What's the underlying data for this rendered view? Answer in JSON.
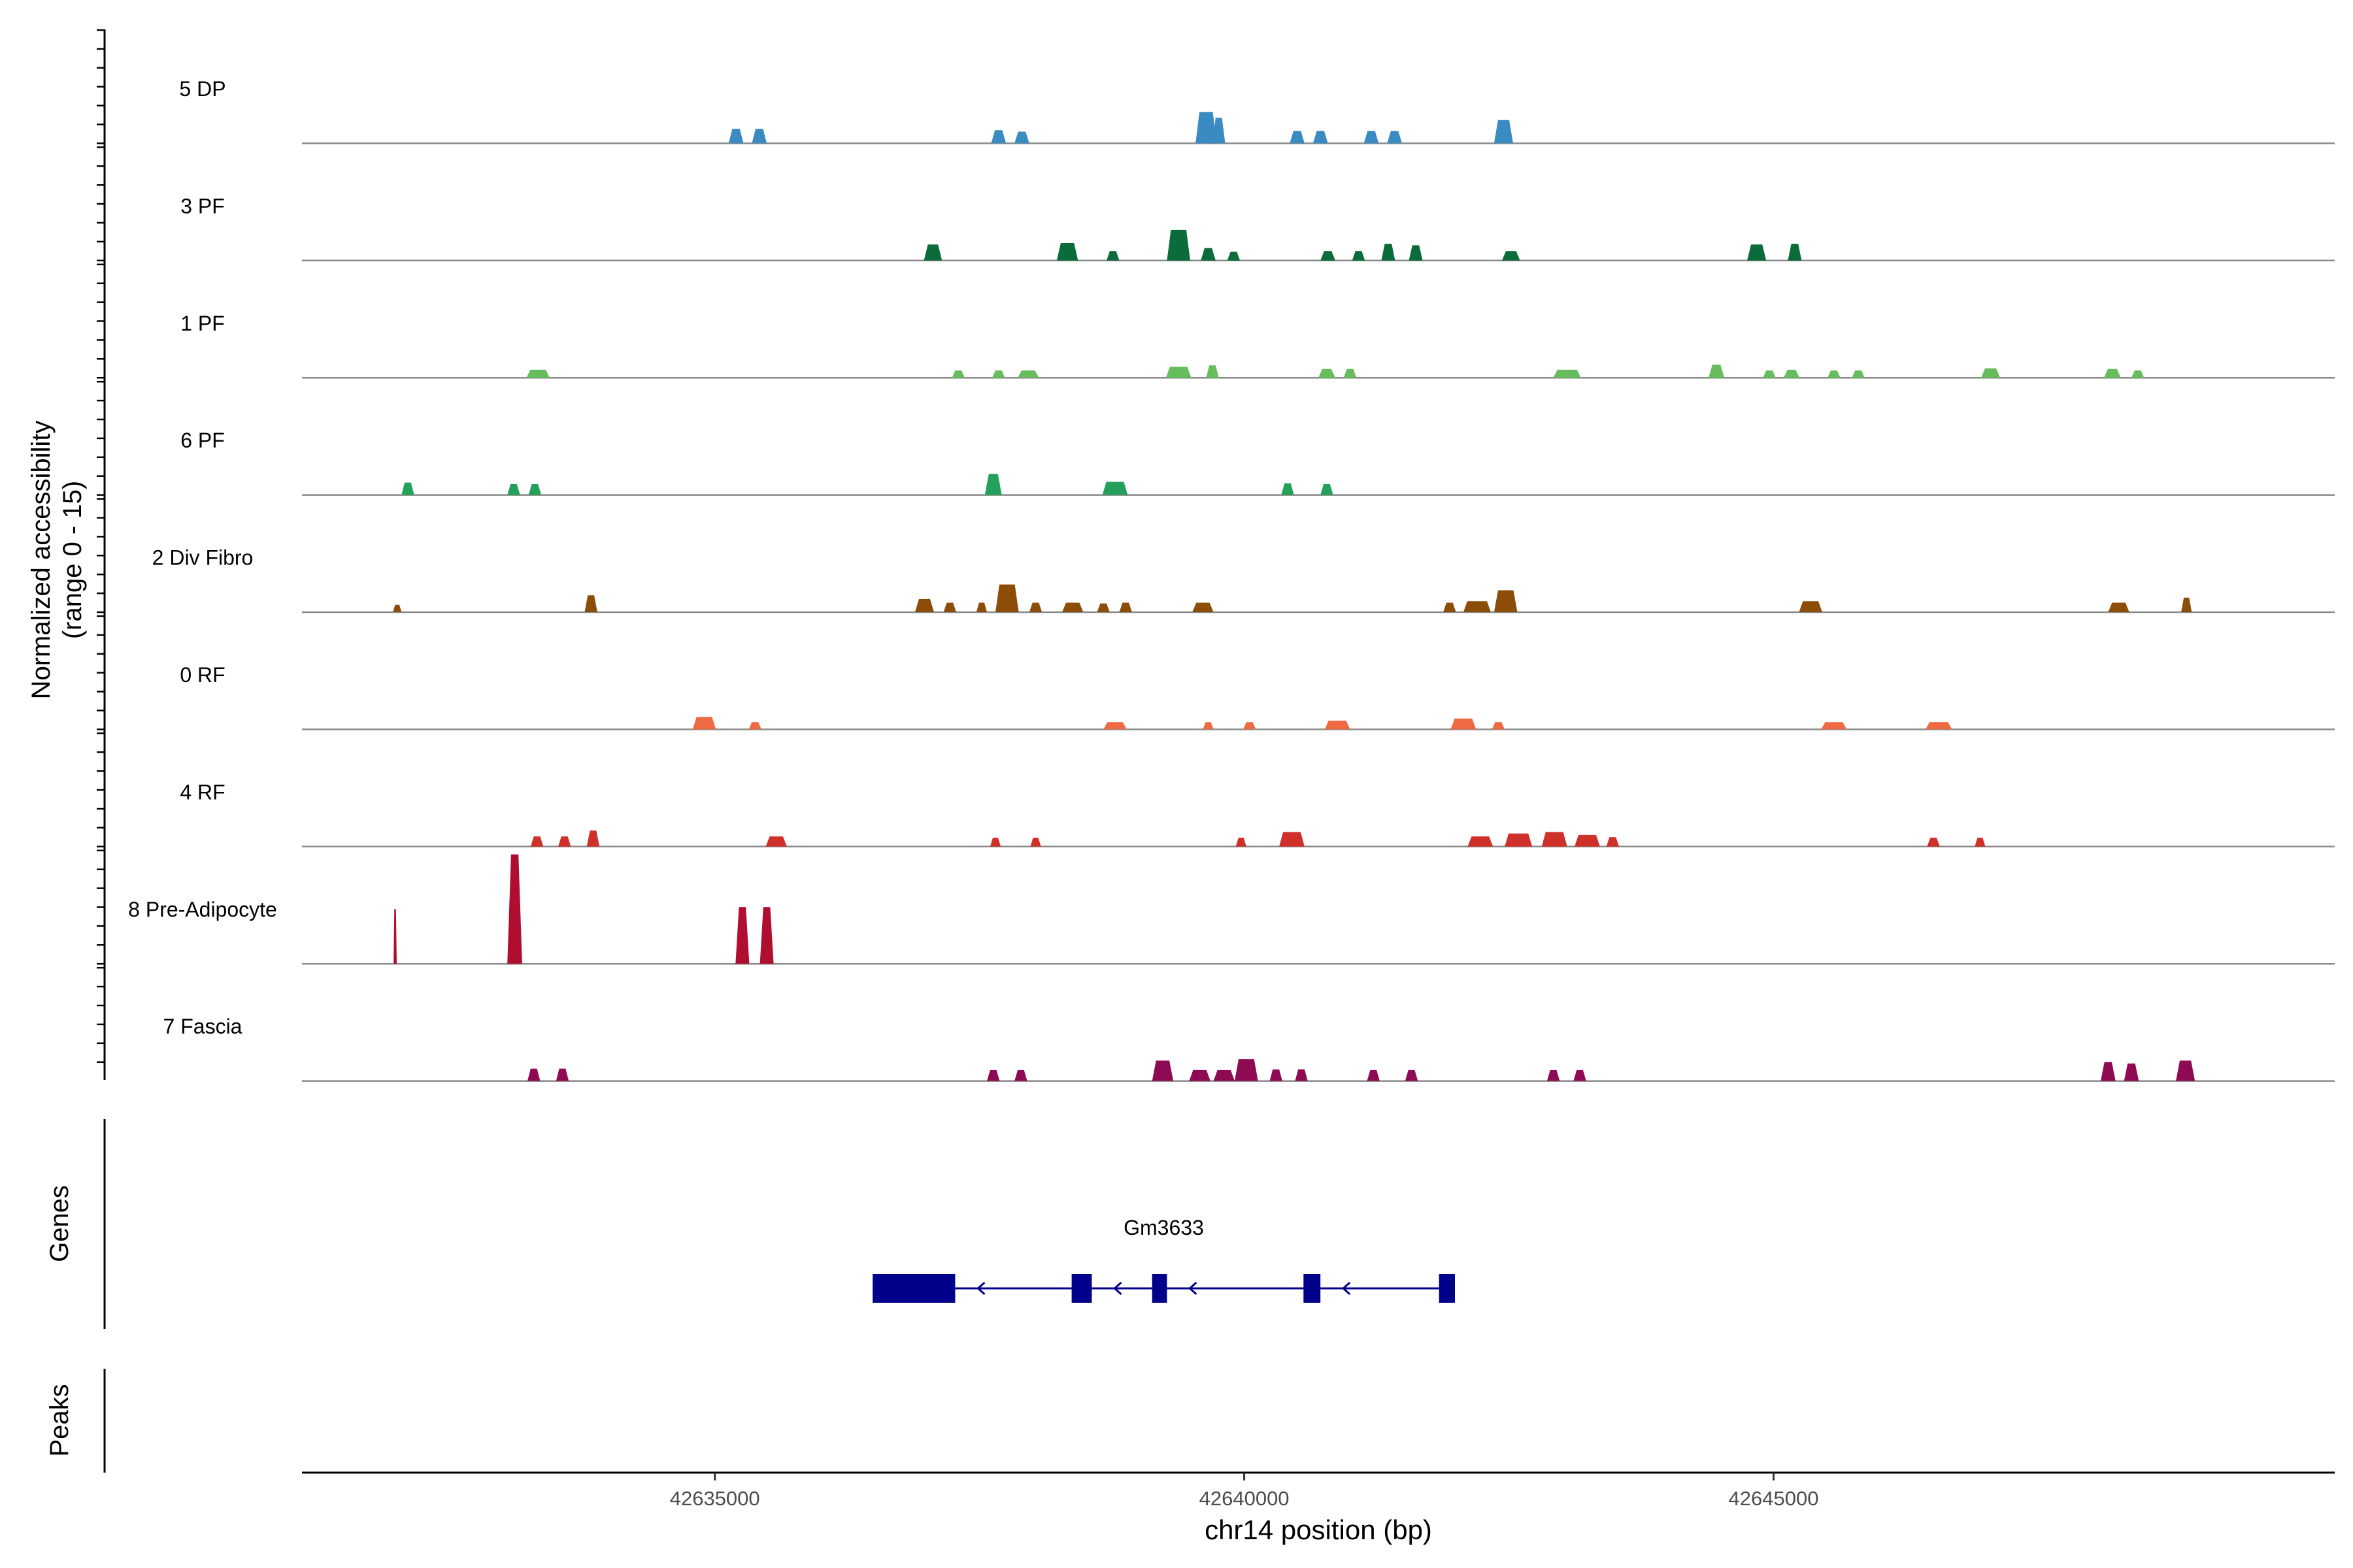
{
  "chart_data": {
    "type": "area",
    "title": "",
    "ylabel_line1": "Normalized accessibility",
    "ylabel_line2": "(range 0 - 15)",
    "xlabel": "chr14 position (bp)",
    "xlim": [
      42631100,
      42650300
    ],
    "ylim": [
      0,
      15
    ],
    "x_ticks": [
      {
        "value": 42635000,
        "label": "42635000"
      },
      {
        "value": 42640000,
        "label": "42640000"
      },
      {
        "value": 42645000,
        "label": "42645000"
      }
    ],
    "series": [
      {
        "name": "5 DP",
        "color": "#3a8bc2",
        "peaks": [
          [
            42635200,
            2.0,
            140
          ],
          [
            42635420,
            2.0,
            140
          ],
          [
            42637680,
            1.8,
            140
          ],
          [
            42637900,
            1.6,
            140
          ],
          [
            42639640,
            4.3,
            200
          ],
          [
            42639760,
            3.5,
            120
          ],
          [
            42640500,
            1.7,
            140
          ],
          [
            42640720,
            1.7,
            140
          ],
          [
            42641200,
            1.7,
            140
          ],
          [
            42641420,
            1.7,
            140
          ],
          [
            42642450,
            3.2,
            180
          ]
        ]
      },
      {
        "name": "3 PF",
        "color": "#0c6b3a",
        "peaks": [
          [
            42637060,
            2.2,
            170
          ],
          [
            42638330,
            2.4,
            200
          ],
          [
            42638760,
            1.3,
            120
          ],
          [
            42639380,
            4.2,
            220
          ],
          [
            42639660,
            1.7,
            140
          ],
          [
            42639900,
            1.2,
            120
          ],
          [
            42640790,
            1.3,
            140
          ],
          [
            42641080,
            1.3,
            120
          ],
          [
            42641360,
            2.3,
            130
          ],
          [
            42641620,
            2.1,
            130
          ],
          [
            42642520,
            1.3,
            170
          ],
          [
            42644840,
            2.2,
            180
          ],
          [
            42645200,
            2.3,
            130
          ]
        ]
      },
      {
        "name": "1 PF",
        "color": "#67bc5e",
        "peaks": [
          [
            42633330,
            1.1,
            220
          ],
          [
            42637300,
            1.0,
            120
          ],
          [
            42637680,
            1.0,
            120
          ],
          [
            42637960,
            1.0,
            200
          ],
          [
            42639380,
            1.5,
            240
          ],
          [
            42639700,
            1.7,
            120
          ],
          [
            42640780,
            1.2,
            160
          ],
          [
            42641000,
            1.2,
            120
          ],
          [
            42643050,
            1.1,
            260
          ],
          [
            42644460,
            1.8,
            150
          ],
          [
            42644960,
            1.0,
            120
          ],
          [
            42645170,
            1.1,
            150
          ],
          [
            42645570,
            1.0,
            120
          ],
          [
            42645800,
            1.0,
            120
          ],
          [
            42647050,
            1.3,
            180
          ],
          [
            42648200,
            1.2,
            160
          ],
          [
            42648440,
            1.0,
            120
          ]
        ]
      },
      {
        "name": "6 PF",
        "color": "#23a15a",
        "peaks": [
          [
            42632100,
            1.7,
            120
          ],
          [
            42633100,
            1.5,
            120
          ],
          [
            42633300,
            1.5,
            120
          ],
          [
            42637630,
            2.9,
            160
          ],
          [
            42638780,
            1.8,
            240
          ],
          [
            42640410,
            1.6,
            120
          ],
          [
            42640780,
            1.5,
            120
          ]
        ]
      },
      {
        "name": "2 Div Fibro",
        "color": "#8b4d08",
        "peaks": [
          [
            42632000,
            1.0,
            80
          ],
          [
            42633830,
            2.3,
            120
          ],
          [
            42636980,
            1.8,
            180
          ],
          [
            42637220,
            1.3,
            120
          ],
          [
            42637520,
            1.3,
            100
          ],
          [
            42637760,
            3.8,
            220
          ],
          [
            42638030,
            1.3,
            120
          ],
          [
            42638380,
            1.3,
            200
          ],
          [
            42638670,
            1.2,
            120
          ],
          [
            42638880,
            1.3,
            120
          ],
          [
            42639610,
            1.3,
            200
          ],
          [
            42641940,
            1.3,
            120
          ],
          [
            42642200,
            1.5,
            260
          ],
          [
            42642470,
            3.0,
            220
          ],
          [
            42645350,
            1.5,
            220
          ],
          [
            42648260,
            1.3,
            200
          ],
          [
            42648900,
            2.0,
            100
          ]
        ]
      },
      {
        "name": "0 RF",
        "color": "#ef6a42",
        "peaks": [
          [
            42634900,
            1.7,
            220
          ],
          [
            42635380,
            1.0,
            120
          ],
          [
            42638780,
            1.0,
            220
          ],
          [
            42639660,
            1.0,
            100
          ],
          [
            42640050,
            1.0,
            120
          ],
          [
            42640880,
            1.2,
            240
          ],
          [
            42642070,
            1.5,
            240
          ],
          [
            42642400,
            1.0,
            120
          ],
          [
            42645570,
            1.0,
            240
          ],
          [
            42646560,
            1.0,
            250
          ]
        ]
      },
      {
        "name": "4 RF",
        "color": "#d0302a",
        "peaks": [
          [
            42633320,
            1.4,
            120
          ],
          [
            42633580,
            1.4,
            120
          ],
          [
            42633850,
            2.2,
            120
          ],
          [
            42635580,
            1.4,
            200
          ],
          [
            42637650,
            1.2,
            100
          ],
          [
            42638030,
            1.2,
            100
          ],
          [
            42639970,
            1.2,
            100
          ],
          [
            42640450,
            2.0,
            240
          ],
          [
            42642230,
            1.4,
            240
          ],
          [
            42642590,
            1.8,
            260
          ],
          [
            42642930,
            2.0,
            240
          ],
          [
            42643240,
            1.6,
            240
          ],
          [
            42643480,
            1.3,
            120
          ],
          [
            42646510,
            1.2,
            120
          ],
          [
            42646950,
            1.2,
            100
          ]
        ]
      },
      {
        "name": "8 Pre-Adipocyte",
        "color": "#b00e30",
        "peaks": [
          [
            42631980,
            7.5,
            30
          ],
          [
            42633110,
            15.0,
            140
          ],
          [
            42635260,
            7.8,
            130
          ],
          [
            42635490,
            7.8,
            130
          ]
        ]
      },
      {
        "name": "7 Fascia",
        "color": "#8e0a52",
        "peaks": [
          [
            42633290,
            1.7,
            120
          ],
          [
            42633560,
            1.7,
            120
          ],
          [
            42637630,
            1.5,
            120
          ],
          [
            42637890,
            1.5,
            120
          ],
          [
            42639230,
            2.8,
            200
          ],
          [
            42639580,
            1.5,
            200
          ],
          [
            42639810,
            1.5,
            200
          ],
          [
            42640020,
            3.0,
            220
          ],
          [
            42640300,
            1.6,
            120
          ],
          [
            42640540,
            1.6,
            120
          ],
          [
            42641220,
            1.5,
            120
          ],
          [
            42641580,
            1.5,
            120
          ],
          [
            42642920,
            1.5,
            120
          ],
          [
            42643170,
            1.5,
            120
          ],
          [
            42648160,
            2.6,
            140
          ],
          [
            42648380,
            2.4,
            140
          ],
          [
            42648890,
            2.8,
            180
          ]
        ]
      }
    ],
    "genes_panel": {
      "label": "Genes",
      "gene_name": "Gm3633",
      "gene_span": [
        42636490,
        42641990
      ],
      "exons": [
        [
          42636490,
          42637270
        ],
        [
          42638370,
          42638560
        ],
        [
          42639130,
          42639270
        ],
        [
          42640560,
          42640720
        ],
        [
          42641840,
          42641990
        ]
      ],
      "strand": "-",
      "color": "#00008b"
    },
    "peaks_panel": {
      "label": "Peaks"
    }
  }
}
